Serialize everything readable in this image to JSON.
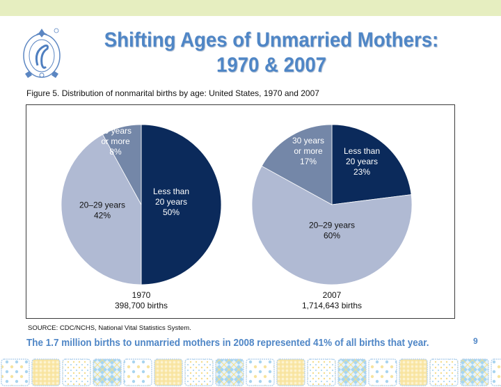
{
  "slide": {
    "title_line1": "Shifting Ages of Unmarried Mothers:",
    "title_line2": "1970 & 2007",
    "logo_icon": "crown-crafts-logo",
    "figure_caption": "Figure 5.  Distribution of nonmarital births by age: United States, 1970 and 2007",
    "source": "SOURCE: CDC/NCHS, National Vital Statistics System.",
    "footnote": "The 1.7 million births to unmarried mothers in 2008 represented 41% of all births that year.",
    "page_number": "9",
    "colors": {
      "title": "#4f86c6",
      "top_band": "#e6eec0",
      "less_than_20": "#0b2a5b",
      "age_20_29": "#b0bad3",
      "age_30_plus": "#7487a8"
    }
  },
  "chart_data": [
    {
      "type": "pie",
      "title": "1970",
      "subtitle": "398,700 births",
      "slices": [
        {
          "label_lines": [
            "Less than",
            "20 years",
            "50%"
          ],
          "name": "Less than 20 years",
          "value": 50,
          "color": "#0b2a5b",
          "text_color": "#ffffff"
        },
        {
          "label_lines": [
            "20–29 years",
            "42%"
          ],
          "name": "20–29 years",
          "value": 42,
          "color": "#b0bad3",
          "text_color": "#111111"
        },
        {
          "label_lines": [
            "30 years",
            "or more",
            "8%"
          ],
          "name": "30 years or more",
          "value": 8,
          "color": "#7487a8",
          "text_color": "#ffffff"
        }
      ]
    },
    {
      "type": "pie",
      "title": "2007",
      "subtitle": "1,714,643 births",
      "slices": [
        {
          "label_lines": [
            "Less than",
            "20 years",
            "23%"
          ],
          "name": "Less than 20 years",
          "value": 23,
          "color": "#0b2a5b",
          "text_color": "#ffffff"
        },
        {
          "label_lines": [
            "20–29 years",
            "60%"
          ],
          "name": "20–29 years",
          "value": 60,
          "color": "#b0bad3",
          "text_color": "#111111"
        },
        {
          "label_lines": [
            "30 years",
            "or more",
            "17%"
          ],
          "name": "30 years or more",
          "value": 17,
          "color": "#7487a8",
          "text_color": "#ffffff"
        }
      ]
    }
  ]
}
